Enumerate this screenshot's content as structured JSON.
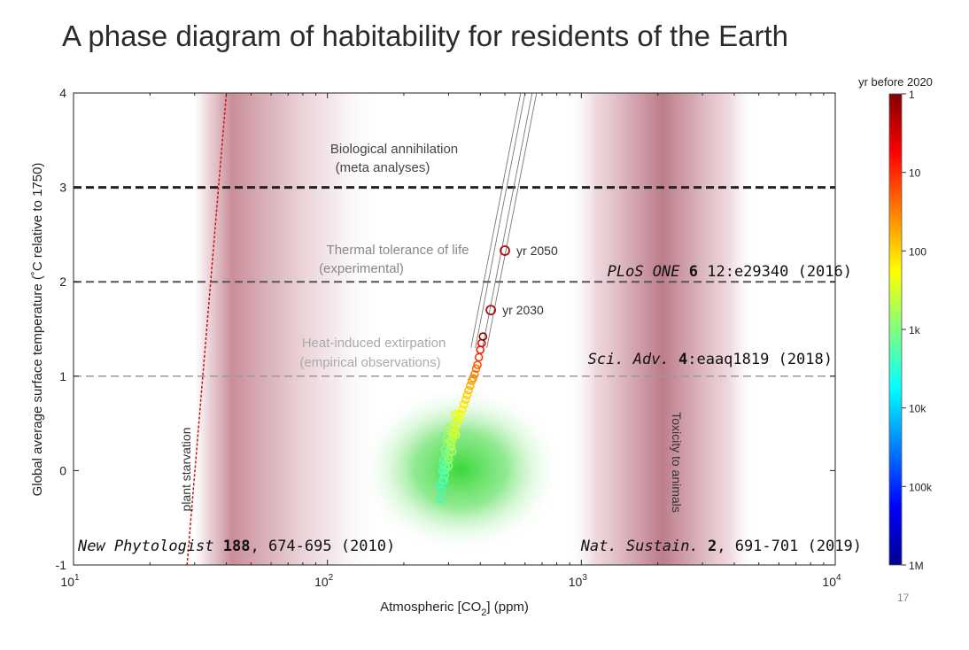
{
  "title": "A phase diagram of habitability for residents of the Earth",
  "page_number": "17",
  "chart_data": {
    "type": "scatter",
    "xlabel": "Atmospheric [CO2] (ppm)",
    "xlabel_main": "Atmospheric [CO",
    "xlabel_sub": "2",
    "xlabel_end": "] (ppm)",
    "ylabel": "Global average surface temperature (˚C relative to 1750)",
    "x_scale": "log",
    "xlim": [
      10,
      10000
    ],
    "ylim": [
      -1,
      4
    ],
    "x_ticks": [
      {
        "value": 10,
        "base": "10",
        "exp": "1"
      },
      {
        "value": 100,
        "base": "10",
        "exp": "2"
      },
      {
        "value": 1000,
        "base": "10",
        "exp": "3"
      },
      {
        "value": 10000,
        "base": "10",
        "exp": "4"
      }
    ],
    "y_ticks": [
      {
        "value": -1,
        "label": "-1"
      },
      {
        "value": 0,
        "label": "0"
      },
      {
        "value": 1,
        "label": "1"
      },
      {
        "value": 2,
        "label": "2"
      },
      {
        "value": 3,
        "label": "3"
      },
      {
        "value": 4,
        "label": "4"
      }
    ],
    "thresholds": [
      {
        "y": 3,
        "label": "Biological annihilation",
        "sublabel": "(meta analyses)",
        "color": "#222222",
        "citation": ""
      },
      {
        "y": 2,
        "label": "Thermal tolerance of life",
        "sublabel": "(experimental)",
        "color": "#555555",
        "citation": "PLoS ONE 6 12:e29340 (2016)",
        "cit_italic": "PLoS ONE ",
        "cit_bold": "6",
        "cit_rest": " 12:e29340 (2016)"
      },
      {
        "y": 1,
        "label": "Heat-induced extirpation",
        "sublabel": "(empirical observations)",
        "color": "#999999",
        "citation": "Sci. Adv. 4:eaaq1819 (2018)",
        "cit_italic": "Sci. Adv. ",
        "cit_bold": "4",
        "cit_rest": ":eaaq1819 (2018)"
      }
    ],
    "bottom_citations": [
      {
        "text": "New Phytologist 188, 674-695 (2010)",
        "italic": "New Phytologist ",
        "bold": "188",
        "rest": ", 674-695 (2010)"
      },
      {
        "text": "Nat. Sustain. 2, 691-701 (2019)",
        "italic": "Nat. Sustain. ",
        "bold": "2",
        "rest": ", 691-701 (2019)"
      }
    ],
    "zones": [
      {
        "label": "plant starvation"
      },
      {
        "label": "Toxicity to animals"
      }
    ],
    "starvation_line": {
      "x": [
        28,
        40
      ],
      "y": [
        -1,
        4
      ]
    },
    "projection": {
      "x": [
        395,
        620
      ],
      "y": [
        1.3,
        4.0
      ],
      "markers": [
        {
          "x": 500,
          "y": 2.33,
          "label": "yr 2050"
        },
        {
          "x": 440,
          "y": 1.7,
          "label": "yr 2030"
        }
      ]
    },
    "holocene_cloud": {
      "x_center": 330,
      "y_center": 0.0
    },
    "historical_points": {
      "x": [
        280,
        282,
        285,
        288,
        290,
        292,
        295,
        298,
        300,
        302,
        305,
        308,
        310,
        312,
        315,
        318,
        320,
        325,
        330,
        335,
        340,
        345,
        350,
        355,
        360,
        365,
        370,
        375,
        380,
        385,
        390,
        395,
        400,
        405,
        410,
        278,
        283,
        287,
        293,
        297,
        303,
        307,
        313,
        317,
        323,
        285,
        290,
        296,
        300,
        288,
        294,
        301,
        306,
        311,
        319
      ],
      "y": [
        -0.3,
        -0.2,
        -0.1,
        0.0,
        -0.05,
        0.05,
        0.1,
        0.15,
        0.05,
        0.2,
        0.25,
        0.3,
        0.2,
        0.35,
        0.4,
        0.45,
        0.38,
        0.5,
        0.55,
        0.6,
        0.65,
        0.7,
        0.75,
        0.8,
        0.85,
        0.9,
        0.95,
        0.98,
        1.02,
        1.08,
        1.12,
        1.2,
        1.28,
        1.35,
        1.42,
        -0.15,
        0.0,
        0.12,
        0.18,
        0.28,
        0.32,
        0.25,
        0.42,
        0.5,
        0.58,
        0.08,
        0.22,
        0.35,
        0.45,
        -0.1,
        0.02,
        0.12,
        0.3,
        0.4,
        0.6
      ],
      "years_before_2020": [
        3000,
        2500,
        2000,
        1800,
        1500,
        1300,
        1100,
        900,
        800,
        700,
        600,
        500,
        450,
        400,
        350,
        300,
        280,
        250,
        200,
        170,
        150,
        130,
        110,
        90,
        75,
        60,
        50,
        40,
        32,
        25,
        18,
        12,
        8,
        4,
        1,
        2800,
        2200,
        1600,
        1000,
        850,
        650,
        550,
        420,
        320,
        230,
        1900,
        1200,
        750,
        520,
        2100,
        1400,
        680,
        470,
        380,
        260
      ]
    },
    "colorbar": {
      "label": "yr before 2020",
      "ticks": [
        {
          "value": 1,
          "label": "1"
        },
        {
          "value": 10,
          "label": "10"
        },
        {
          "value": 100,
          "label": "100"
        },
        {
          "value": 1000,
          "label": "1k"
        },
        {
          "value": 10000,
          "label": "10k"
        },
        {
          "value": 100000,
          "label": "100k"
        },
        {
          "value": 1000000,
          "label": "1M"
        }
      ],
      "colormap": "jet (reversed: dark red = recent, dark blue = 1M yr)"
    }
  }
}
